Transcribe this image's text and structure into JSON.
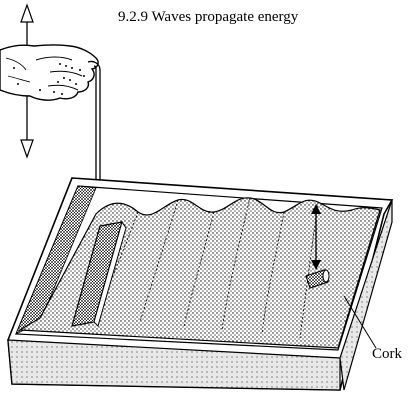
{
  "figure": {
    "title": "9.2.9 Waves propagate energy",
    "labels": {
      "cork": "Cork"
    }
  }
}
